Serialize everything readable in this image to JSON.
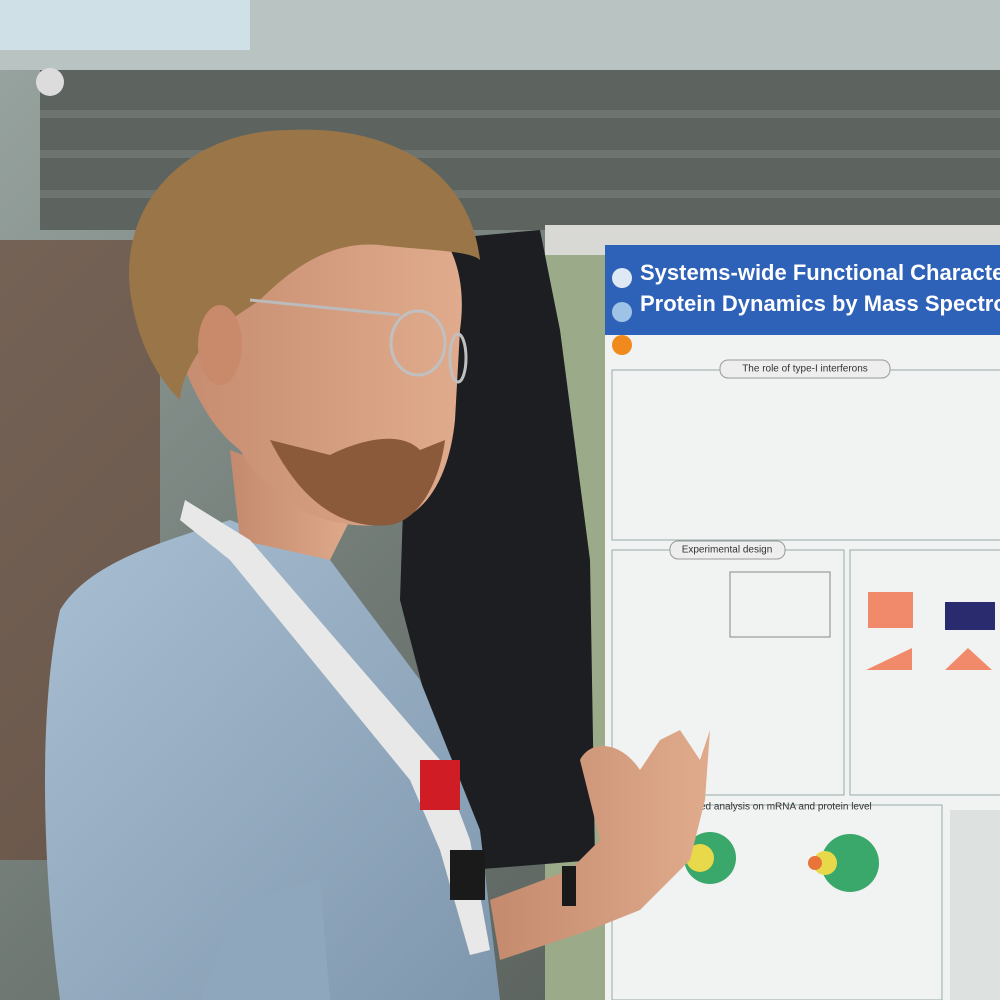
{
  "poster": {
    "title_line1": "Systems-wide Functional Characte",
    "title_line2": "Protein Dynamics by Mass Spectro",
    "sections": [
      "The role of type-I interferons",
      "Experimental design",
      "ed analysis on mRNA and protein level"
    ]
  }
}
